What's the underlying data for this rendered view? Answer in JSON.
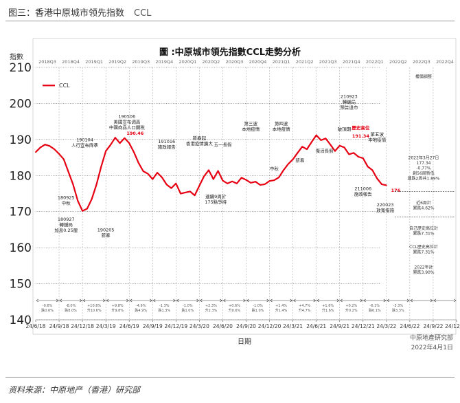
{
  "figure_title": "图三：香港中原城市领先指数",
  "figure_title_series": "CCL",
  "source_note": "资料来源：中原地产（香港）研究部",
  "chart_data": {
    "type": "line",
    "title": "圖 :中原城市領先指數CCL走勢分析",
    "ylabel": "指數",
    "xlabel": "日期",
    "ylim": [
      140,
      210
    ],
    "yticks": [
      140,
      150,
      160,
      170,
      180,
      190,
      200,
      210
    ],
    "grid": true,
    "legend": "top-left",
    "series_color": "#e60012",
    "x_tick_labels": [
      "24/6/18",
      "24/9/18",
      "24/12/18",
      "24/3/19",
      "24/6/19",
      "24/9/19",
      "24/12/19",
      "24/3/20",
      "24/6/20",
      "24/9/20",
      "24/12/20",
      "24/3/21",
      "24/6/21",
      "24/9/21",
      "24/12/21",
      "24/3/22",
      "24/6/22",
      "24/9/22",
      "24/12/22"
    ],
    "quarter_labels": [
      "2018Q3",
      "2018Q4",
      "2019Q1",
      "2019Q2",
      "2019Q3",
      "2019Q4",
      "2020Q1",
      "2020Q2",
      "2020Q3",
      "2020Q4",
      "2021Q1",
      "2021Q2",
      "2021Q3",
      "2021Q4",
      "2022Q1",
      "2022Q2",
      "2022Q3",
      "2022Q4"
    ],
    "quarter_changes": [
      "-0.6%\n跌0.6%",
      "-8.0%\n跌8.0%",
      "+10.6%\n升10.6%",
      "+9.8%\n升9.8%",
      "-4.9%\n跌4.9%",
      "-1.3%\n跌1.3%",
      "-1.0%\n跌1.0%",
      "+2.3%\n升2.3%",
      "+0.6%\n升0.6%",
      "-1.0%\n跌1.0%",
      "+1.4%\n升1.4%",
      "+4.7%\n升4.7%",
      "+1.6%\n升1.6%",
      "+0.2%\n升0.2%",
      "-6.1%\n跌6.1%",
      "-3.3%\n跌3.3%",
      "",
      ""
    ],
    "series": [
      {
        "name": "CCL",
        "x": [
          0,
          0.2,
          0.4,
          0.6,
          0.8,
          1.0,
          1.2,
          1.4,
          1.6,
          1.8,
          2.0,
          2.2,
          2.4,
          2.6,
          2.8,
          3.0,
          3.2,
          3.4,
          3.6,
          3.8,
          4.0,
          4.2,
          4.4,
          4.6,
          4.8,
          5.0,
          5.2,
          5.4,
          5.6,
          5.8,
          6.0,
          6.2,
          6.4,
          6.6,
          6.8,
          7.0,
          7.2,
          7.4,
          7.6,
          7.8,
          8.0,
          8.2,
          8.4,
          8.6,
          8.8,
          9.0,
          9.2,
          9.4,
          9.6,
          9.8,
          10.0,
          10.2,
          10.4,
          10.6,
          10.8,
          11.0,
          11.2,
          11.4,
          11.6,
          11.8,
          12.0,
          12.2,
          12.4,
          12.6,
          12.8,
          13.0,
          13.2,
          13.4,
          13.6,
          13.8,
          14.0,
          14.2,
          14.4,
          14.6,
          14.8,
          15.0
        ],
        "values": [
          186.5,
          187.8,
          188.6,
          188.2,
          187.3,
          186.0,
          184.5,
          181.0,
          177.5,
          173.0,
          170.2,
          170.8,
          173.5,
          177.5,
          182.5,
          186.8,
          188.5,
          190.5,
          189.0,
          190.4,
          189.0,
          186.5,
          183.5,
          181.2,
          180.5,
          179.0,
          180.8,
          179.5,
          177.5,
          176.5,
          177.8,
          175.0,
          175.3,
          175.6,
          174.5,
          177.2,
          179.8,
          181.5,
          179.0,
          181.3,
          178.6,
          177.8,
          178.4,
          177.8,
          179.4,
          178.8,
          178.0,
          178.3,
          177.4,
          177.6,
          178.5,
          178.7,
          179.5,
          181.5,
          183.2,
          184.5,
          186.3,
          188.0,
          187.3,
          189.3,
          191.2,
          189.8,
          190.3,
          188.6,
          186.8,
          188.3,
          187.8,
          185.9,
          186.3,
          185.2,
          184.8,
          182.5,
          181.5,
          179.2,
          177.6,
          177.3
        ]
      }
    ],
    "annotations": [
      {
        "label": "180925\n中秋",
        "x": 1.3,
        "y": 173.5
      },
      {
        "label": "180927\n轉舖局\n加息0.25厘",
        "x": 1.3,
        "y": 167.5
      },
      {
        "label": "190104\n人行宣布降準",
        "x": 2.1,
        "y": 189.5
      },
      {
        "label": "190205\n新春",
        "x": 3.0,
        "y": 164.5
      },
      {
        "label": "190506\n美國宣布调高\n中國商品入口關稅",
        "x": 3.9,
        "y": 196.0
      },
      {
        "label": "190.46",
        "x": 4.25,
        "y": 191.3
      },
      {
        "label": "191016\n施政報告",
        "x": 5.6,
        "y": 189.0
      },
      {
        "label": "新春起\n香港疫情擴大",
        "x": 7.0,
        "y": 190.0
      },
      {
        "label": "五一長假",
        "x": 8.0,
        "y": 188.2
      },
      {
        "label": "連續9周於\n175點爭持",
        "x": 7.7,
        "y": 173.8
      },
      {
        "label": "第三波\n本地疫情",
        "x": 9.2,
        "y": 194.0
      },
      {
        "label": "中秋",
        "x": 10.2,
        "y": 181.5
      },
      {
        "label": "第四波\n本地疫情",
        "x": 10.5,
        "y": 194.0
      },
      {
        "label": "新春",
        "x": 11.3,
        "y": 183.8
      },
      {
        "label": "復活長假",
        "x": 12.35,
        "y": 186.4
      },
      {
        "label": "210923\n轉舖局\n預告退市",
        "x": 13.4,
        "y": 201.5
      },
      {
        "label": "破頂期",
        "x": 13.2,
        "y": 192.5
      },
      {
        "label": "歷史高位",
        "x": 13.9,
        "y": 192.8
      },
      {
        "label": "191.34",
        "x": 13.9,
        "y": 190.5
      },
      {
        "label": "第五波\n本地疫情",
        "x": 14.6,
        "y": 191.0
      },
      {
        "label": "211006\n施政報告",
        "x": 14.0,
        "y": 176.0
      },
      {
        "label": "220023\n放寬措施",
        "x": 14.95,
        "y": 171.5
      },
      {
        "label": "176",
        "x": 15.4,
        "y": 175.5
      }
    ],
    "sidebar": [
      {
        "label": "樓價調整",
        "y": 207.0
      },
      {
        "label": "2022年3月27日\n177.34\n-0.77%\n創56周新低\n連跌2周共1.89%",
        "y": 184.5
      },
      {
        "label": "近6周計\n累跌4.62%",
        "y": 172.0
      },
      {
        "label": "自己歷史高位計\n累跌7.31%",
        "y": 165.0
      },
      {
        "label": "CCL歷史高位計\n累跌7.31%",
        "y": 159.8
      },
      {
        "label": "2022年計\n累跌3.90%",
        "y": 154.2
      }
    ],
    "credit_org": "中原地產研究部",
    "credit_date": "2022年4月1日"
  }
}
